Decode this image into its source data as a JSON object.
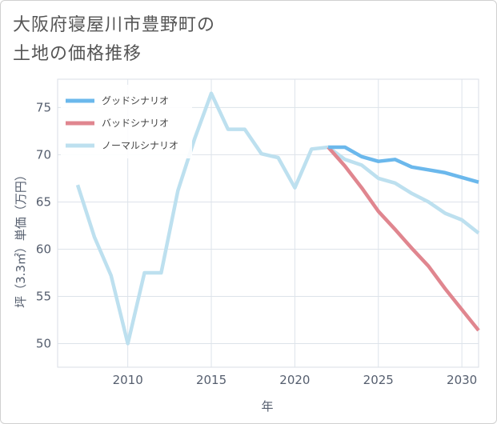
{
  "title_line1": "大阪府寝屋川市豊野町の",
  "title_line2": "土地の価格推移",
  "chart_data": {
    "type": "line",
    "xlabel": "年",
    "ylabel": "坪（3.3㎡）単価（万円）",
    "xlim": [
      2005.8,
      2031
    ],
    "ylim": [
      47.5,
      78
    ],
    "x_ticks": [
      2010,
      2015,
      2020,
      2025,
      2030
    ],
    "y_ticks": [
      50,
      55,
      60,
      65,
      70,
      75
    ],
    "grid": true,
    "legend_position": "top-left",
    "series": [
      {
        "name": "グッドシナリオ",
        "color": "#6bb8ec",
        "x": [
          2022,
          2023,
          2024,
          2025,
          2026,
          2027,
          2028,
          2029,
          2030,
          2031
        ],
        "values": [
          70.8,
          70.8,
          69.8,
          69.3,
          69.5,
          68.7,
          68.4,
          68.1,
          67.6,
          67.1
        ]
      },
      {
        "name": "バッドシナリオ",
        "color": "#e0868f",
        "x": [
          2022,
          2023,
          2024,
          2025,
          2026,
          2027,
          2028,
          2029,
          2030,
          2031
        ],
        "values": [
          70.8,
          68.8,
          66.5,
          64.0,
          62.1,
          60.1,
          58.2,
          55.8,
          53.6,
          51.4
        ]
      },
      {
        "name": "ノーマルシナリオ",
        "color": "#bde0ef",
        "x": [
          2007,
          2008,
          2009,
          2010,
          2011,
          2012,
          2013,
          2014,
          2015,
          2016,
          2017,
          2018,
          2019,
          2020,
          2021,
          2022,
          2023,
          2024,
          2025,
          2026,
          2027,
          2028,
          2029,
          2030,
          2031
        ],
        "values": [
          66.8,
          61.3,
          57.2,
          50.0,
          57.5,
          57.5,
          66.2,
          71.7,
          76.5,
          72.7,
          72.7,
          70.1,
          69.7,
          66.5,
          70.6,
          70.8,
          69.5,
          68.9,
          67.5,
          67.0,
          65.9,
          65.0,
          63.8,
          63.1,
          61.7
        ]
      }
    ]
  }
}
